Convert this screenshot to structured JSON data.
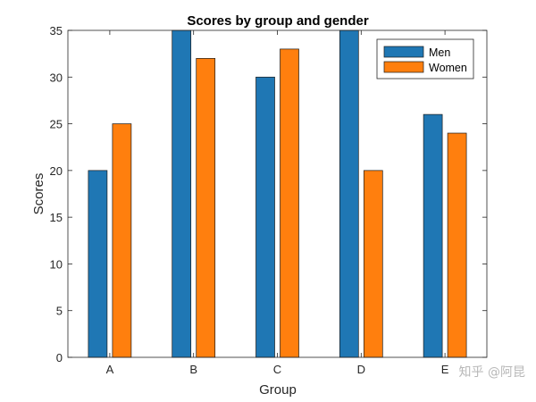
{
  "chart_data": {
    "type": "bar",
    "title": "Scores by group and gender",
    "xlabel": "Group",
    "ylabel": "Scores",
    "categories": [
      "A",
      "B",
      "C",
      "D",
      "E"
    ],
    "ylim": [
      0,
      35
    ],
    "yticks": [
      0,
      5,
      10,
      15,
      20,
      25,
      30,
      35
    ],
    "grid": false,
    "legend_position": "top-right",
    "series": [
      {
        "name": "Men",
        "color": "#1f77b4",
        "values": [
          20,
          35,
          30,
          35,
          26
        ]
      },
      {
        "name": "Women",
        "color": "#ff7f0e",
        "values": [
          25,
          32,
          33,
          20,
          24
        ]
      }
    ]
  },
  "watermark": "知乎 @阿昆"
}
